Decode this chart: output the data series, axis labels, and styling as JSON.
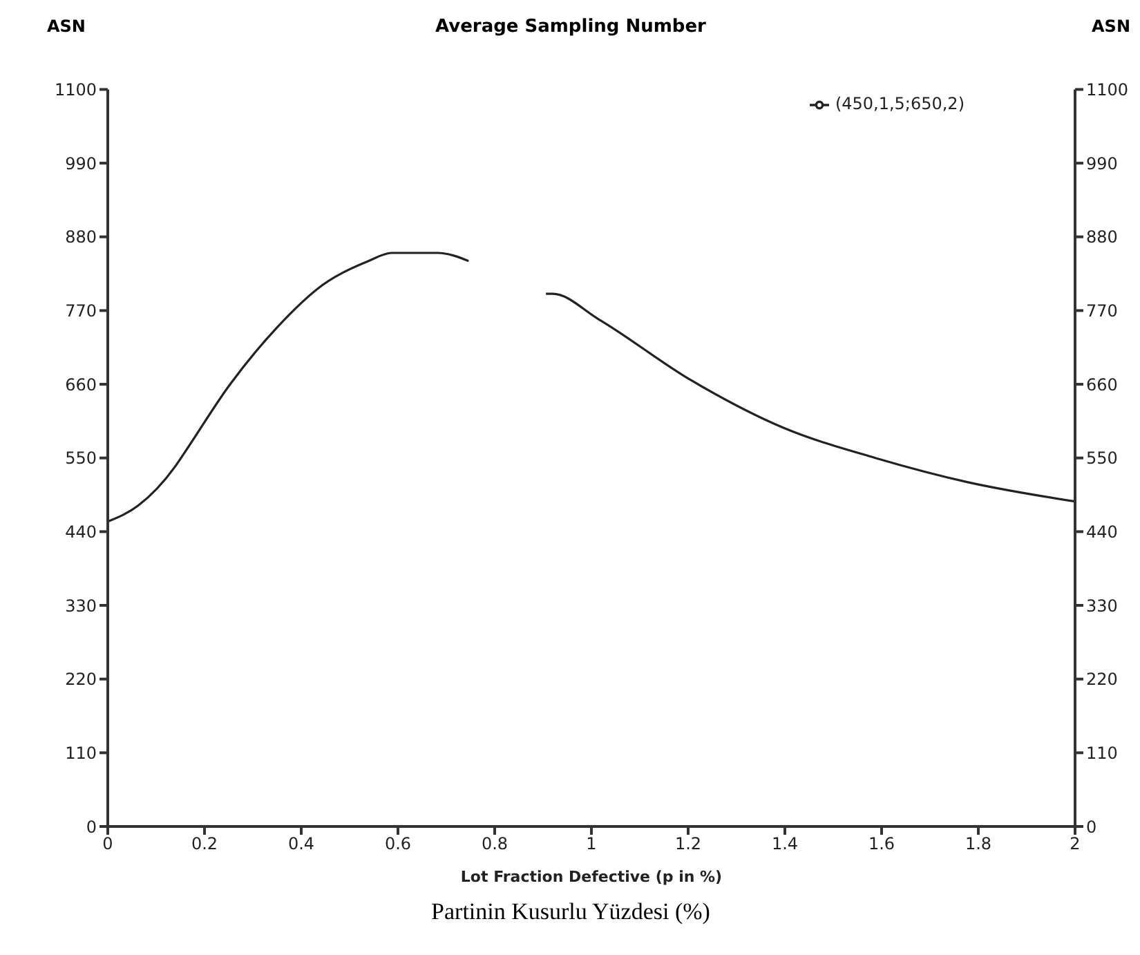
{
  "chart_data": {
    "type": "line",
    "title": "Average Sampling Number",
    "xlabel": "Lot Fraction Defective (p in %)",
    "ylabel": "ASN",
    "y2label": "ASN",
    "annotations": [
      "Partinin Kusurlu Yüzdesi (%)"
    ],
    "x": [
      0,
      0.063,
      0.139,
      0.157,
      0.252,
      0.349,
      0.444,
      0.539,
      0.587,
      0.682,
      0.746,
      0.8,
      0.906,
      0.92,
      1.015,
      1.206,
      1.397,
      1.587,
      1.777,
      2
    ],
    "series": [
      {
        "name": "(450,1,5;650,2)",
        "color": "#222222",
        "values": [
          455,
          479,
          537,
          556,
          659,
          744,
          808,
          844,
          856,
          856,
          844,
          null,
          795,
          795,
          757,
          666,
          595,
          550,
          514,
          485
        ]
      }
    ],
    "xlim": [
      0,
      2
    ],
    "xticks": [
      0,
      0.2,
      0.4,
      0.6,
      0.8,
      1,
      1.2,
      1.4,
      1.6,
      1.8,
      2
    ],
    "ylim": [
      0,
      1100
    ],
    "yticks": [
      0,
      110,
      220,
      330,
      440,
      550,
      660,
      770,
      880,
      990,
      1100
    ],
    "y2lim": [
      0,
      1100
    ],
    "y2ticks": [
      0,
      110,
      220,
      330,
      440,
      550,
      660,
      770,
      880,
      990,
      1100
    ],
    "grid": false,
    "legend": "top right",
    "marker": "none",
    "line_style": "solid"
  }
}
